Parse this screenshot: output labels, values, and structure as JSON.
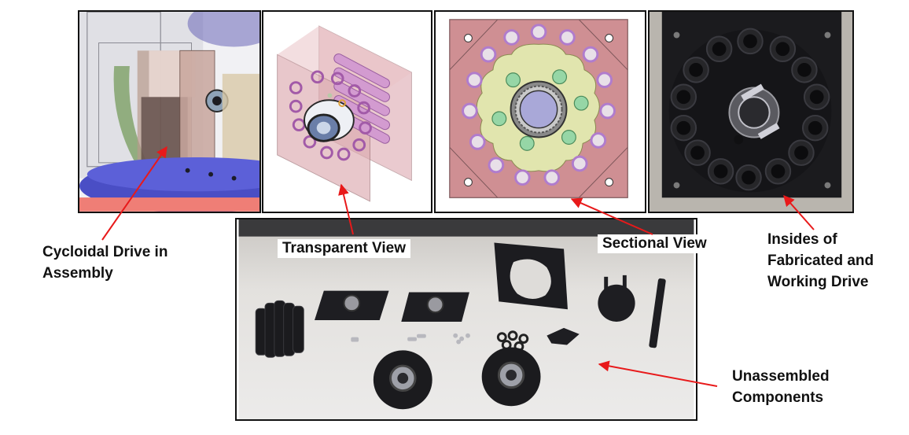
{
  "labels": {
    "assembly_line1": "Cycloidal Drive in",
    "assembly_line2": "Assembly",
    "transparent": "Transparent View",
    "sectional": "Sectional View",
    "insides_line1": "Insides of",
    "insides_line2": "Fabricated and",
    "insides_line3": "Working Drive",
    "unassembled_line1": "Unassembled",
    "unassembled_line2": "Components"
  },
  "colors": {
    "arrow": "#e8191a",
    "panel_border": "#111111",
    "transparent_pink": "#d9a0a8",
    "section_pink": "#cf8f93",
    "section_yellow": "#e1e5ae",
    "pin_purple": "#b07ccd",
    "roller_green": "#96d6a6",
    "bearing_blue": "#a9a8d8",
    "printed_black": "#1b1b1e"
  },
  "icons": {
    "assembly_view": "cad-assembly-render",
    "transparent_view": "cad-transparent-render",
    "sectional_view": "cad-sectional-render",
    "fabricated_photo": "fabricated-drive-photo",
    "components_photo": "unassembled-components-photo"
  }
}
